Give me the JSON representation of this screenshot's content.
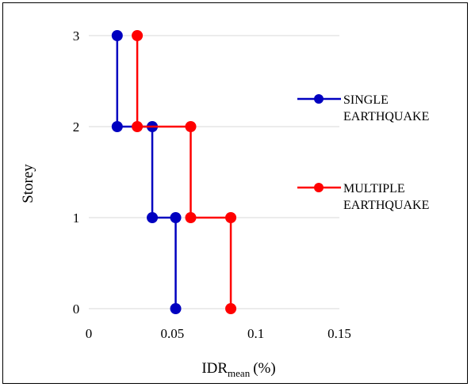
{
  "chart_data": {
    "type": "line",
    "xlabel_main": "IDR",
    "xlabel_sub": "mean",
    "xlabel_unit": "(%)",
    "ylabel": "Storey",
    "xlim": [
      0,
      0.15
    ],
    "ylim": [
      0,
      3
    ],
    "x_ticks": [
      "0",
      "0.05",
      "0.1",
      "0.15"
    ],
    "y_ticks": [
      "0",
      "1",
      "2",
      "3"
    ],
    "grid": "horizontal",
    "legend_position": "right",
    "series": [
      {
        "name_lines": [
          "SINGLE",
          "EARTHQUAKE"
        ],
        "color": "#0000c0",
        "points": [
          {
            "x": 0.017,
            "y": 3
          },
          {
            "x": 0.017,
            "y": 2
          },
          {
            "x": 0.038,
            "y": 2
          },
          {
            "x": 0.038,
            "y": 1
          },
          {
            "x": 0.052,
            "y": 1
          },
          {
            "x": 0.052,
            "y": 0
          }
        ]
      },
      {
        "name_lines": [
          "MULTIPLE",
          "EARTHQUAKE"
        ],
        "color": "#ff0000",
        "points": [
          {
            "x": 0.029,
            "y": 3
          },
          {
            "x": 0.029,
            "y": 2
          },
          {
            "x": 0.061,
            "y": 2
          },
          {
            "x": 0.061,
            "y": 1
          },
          {
            "x": 0.085,
            "y": 1
          },
          {
            "x": 0.085,
            "y": 0
          }
        ]
      }
    ]
  }
}
